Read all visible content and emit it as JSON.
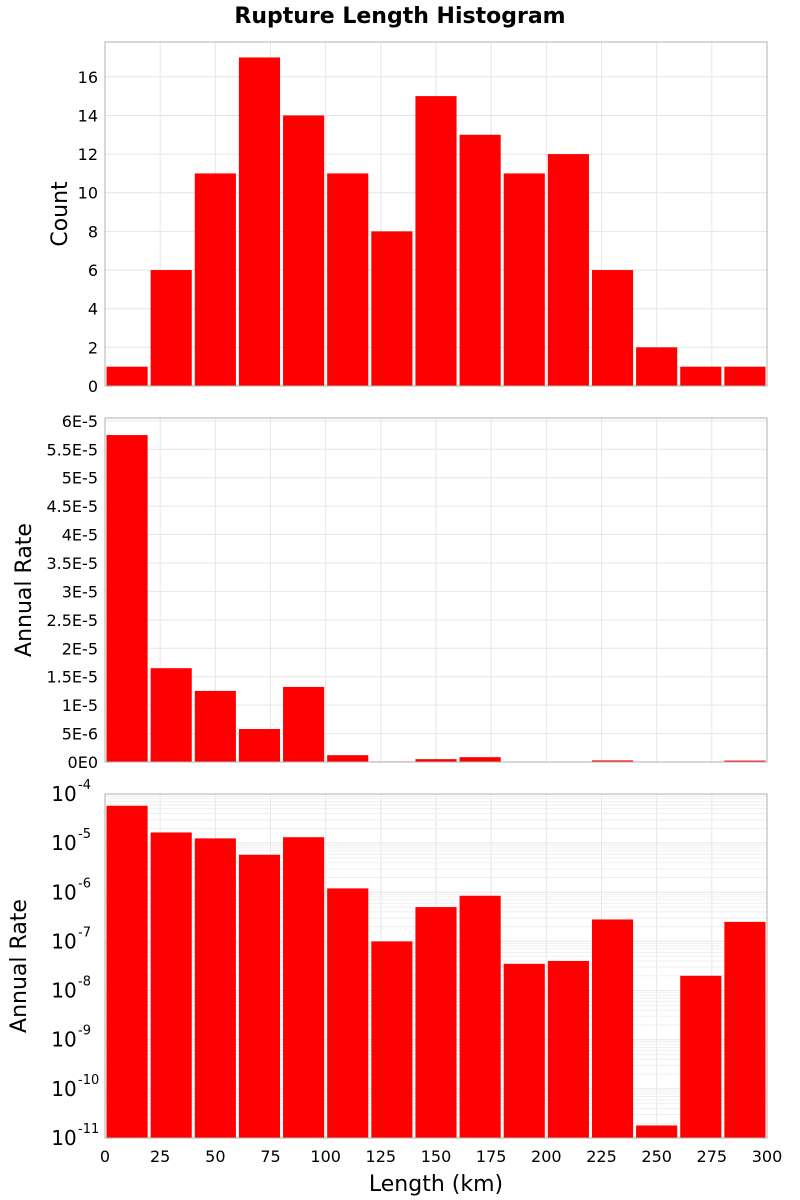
{
  "chart_data": {
    "type": "bar",
    "title": "Rupture Length Histogram",
    "xlabel": "Length (km)",
    "xlim": [
      0,
      300
    ],
    "bin_width": 20,
    "x_ticks": [
      "0",
      "25",
      "50",
      "75",
      "100",
      "125",
      "150",
      "175",
      "200",
      "225",
      "250",
      "275",
      "300"
    ],
    "bar_color": "#ff0000",
    "grid": true,
    "panels": [
      {
        "ylabel": "Count",
        "ylim": [
          0,
          17.8
        ],
        "y_scale": "linear",
        "y_ticks": [
          "0",
          "2",
          "4",
          "6",
          "8",
          "10",
          "12",
          "14",
          "16"
        ],
        "bins": [
          0,
          20,
          40,
          60,
          80,
          100,
          120,
          140,
          160,
          180,
          200,
          220,
          240,
          260,
          280
        ],
        "values": [
          1,
          6,
          11,
          17,
          14,
          11,
          8,
          15,
          13,
          11,
          12,
          6,
          2,
          1,
          1
        ]
      },
      {
        "ylabel": "Annual Rate",
        "ylim": [
          0,
          6.05e-05
        ],
        "y_scale": "linear",
        "y_ticks": [
          "0E0",
          "5E-6",
          "1E-5",
          "1.5E-5",
          "2E-5",
          "2.5E-5",
          "3E-5",
          "3.5E-5",
          "4E-5",
          "4.5E-5",
          "5E-5",
          "5.5E-5",
          "6E-5"
        ],
        "bins": [
          0,
          20,
          40,
          60,
          80,
          100,
          120,
          140,
          160,
          180,
          200,
          220,
          240,
          260,
          280
        ],
        "values": [
          5.75e-05,
          1.65e-05,
          1.25e-05,
          5.8e-06,
          1.32e-05,
          1.2e-06,
          1e-07,
          5e-07,
          8.5e-07,
          3.5e-08,
          4e-08,
          2.8e-07,
          1.8e-11,
          2e-08,
          2.5e-07
        ]
      },
      {
        "ylabel": "Annual Rate",
        "ylim": [
          1e-11,
          0.0001
        ],
        "y_scale": "log",
        "y_ticks": [
          {
            "base": "10",
            "exp": "-11"
          },
          {
            "base": "10",
            "exp": "-10"
          },
          {
            "base": "10",
            "exp": "-9"
          },
          {
            "base": "10",
            "exp": "-8"
          },
          {
            "base": "10",
            "exp": "-7"
          },
          {
            "base": "10",
            "exp": "-6"
          },
          {
            "base": "10",
            "exp": "-5"
          },
          {
            "base": "10",
            "exp": "-4"
          }
        ],
        "bins": [
          0,
          20,
          40,
          60,
          80,
          100,
          120,
          140,
          160,
          180,
          200,
          220,
          240,
          260,
          280
        ],
        "values": [
          5.75e-05,
          1.65e-05,
          1.25e-05,
          5.8e-06,
          1.32e-05,
          1.2e-06,
          1e-07,
          5e-07,
          8.5e-07,
          3.5e-08,
          4e-08,
          2.8e-07,
          1.8e-11,
          2e-08,
          2.5e-07
        ]
      }
    ]
  }
}
